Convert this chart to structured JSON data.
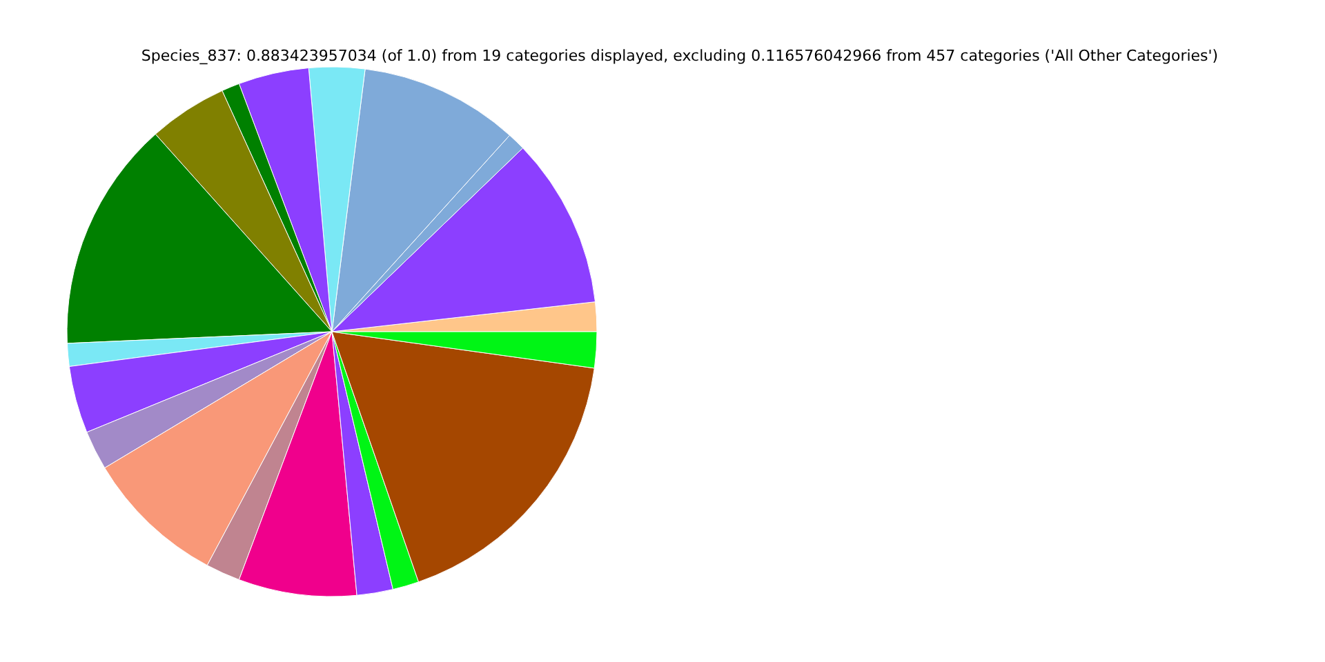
{
  "chart_data": {
    "type": "pie",
    "title": "Species_837: 0.883423957034 (of 1.0) from 19 categories displayed, excluding 0.116576042966 from 457 categories ('All Other Categories')",
    "categories": [
      null,
      null,
      null,
      null,
      null,
      null,
      null,
      null,
      null,
      null,
      null,
      null,
      null,
      null,
      null,
      null,
      null,
      null,
      null
    ],
    "values": [
      1.8,
      10.4,
      1.1,
      9.7,
      3.4,
      4.3,
      1.1,
      4.8,
      14.1,
      1.4,
      4.1,
      2.4,
      8.6,
      2.1,
      7.2,
      2.2,
      1.6,
      17.5,
      2.2
    ],
    "colors": [
      "#ffc68a",
      "#8c3fff",
      "#7faad9",
      "#7faad9",
      "#7ae8f5",
      "#8c3fff",
      "#008000",
      "#808000",
      "#008000",
      "#7ae8f5",
      "#8c3fff",
      "#a28ac8",
      "#f99878",
      "#c08490",
      "#f0008c",
      "#8c3fff",
      "#00f515",
      "#a54700",
      "#00f515"
    ]
  }
}
